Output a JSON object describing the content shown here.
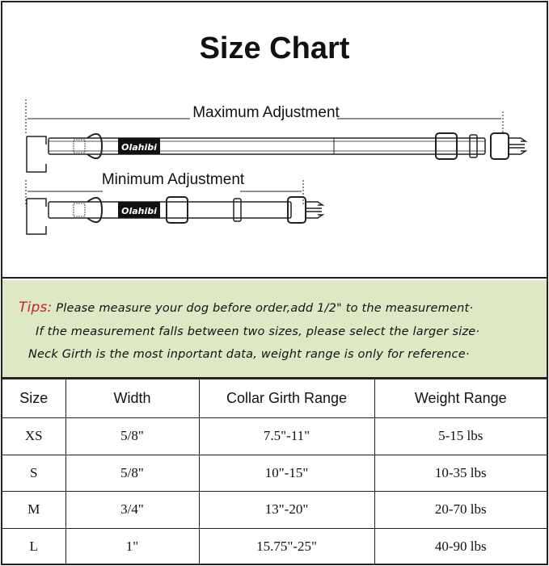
{
  "title": "Size Chart",
  "diagram": {
    "max_label": "Maximum Adjustment",
    "min_label": "Minimum Adjustment",
    "brand_tag": "Olahibi"
  },
  "tips": {
    "prefix": "Tips:",
    "lines": [
      "Please measure your dog before order,add 1/2\" to the measurement·",
      "If the measurement falls between two sizes, please select the larger size·",
      "Neck Girth is the most inportant data, weight range is only for reference·"
    ],
    "background": "#dde8c5",
    "prefix_color": "#c8202a"
  },
  "table": {
    "headers": [
      "Size",
      "Width",
      "Collar Girth Range",
      "Weight Range"
    ],
    "rows": [
      [
        "XS",
        "5/8\"",
        "7.5\"-11\"",
        "5-15 lbs"
      ],
      [
        "S",
        "5/8\"",
        "10\"-15\"",
        "10-35 lbs"
      ],
      [
        "M",
        "3/4\"",
        "13\"-20\"",
        "20-70 lbs"
      ],
      [
        "L",
        "1\"",
        "15.75\"-25\"",
        "40-90 lbs"
      ]
    ]
  }
}
